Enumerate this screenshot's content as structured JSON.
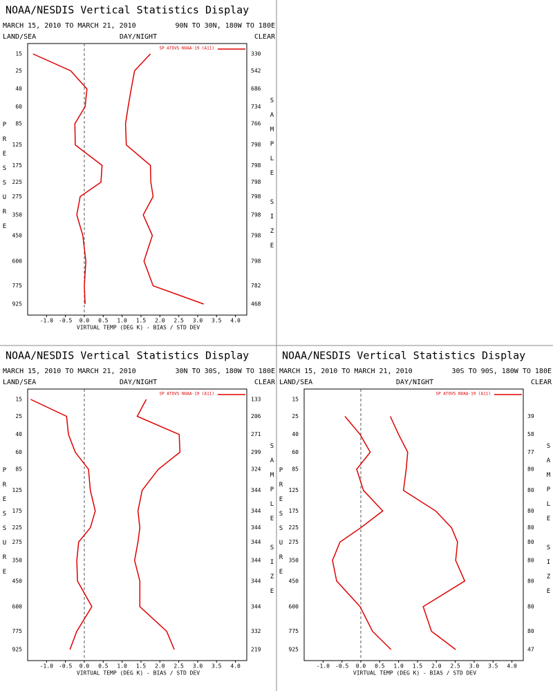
{
  "chart_data": [
    {
      "type": "line",
      "title": "NOAA/NESDIS Vertical Statistics Display",
      "date_range": "MARCH 15, 2010 TO MARCH 21, 2010",
      "region": "90N TO 30N, 180W TO 180E",
      "land_sea": "LAND/SEA",
      "day_night": "DAY/NIGHT",
      "sky": "CLEAR",
      "ylabel": "PRESSURE",
      "y2label": "SAMPLE SIZE",
      "xlabel": "VIRTUAL TEMP (DEG K) - BIAS / STD DEV",
      "categories": [
        15,
        25,
        40,
        60,
        85,
        125,
        175,
        225,
        275,
        350,
        450,
        600,
        775,
        925
      ],
      "sample_sizes": [
        330,
        542,
        686,
        734,
        766,
        798,
        798,
        798,
        798,
        798,
        798,
        798,
        782,
        468
      ],
      "series": [
        {
          "name": "SP ATOVS NOAA-19 (A11)",
          "color": "#dd0000",
          "values": [
            -1.36,
            -0.36,
            0.07,
            0.02,
            -0.25,
            -0.24,
            0.47,
            0.44,
            -0.11,
            -0.2,
            -0.04,
            0.04,
            0.0,
            0.02
          ]
        },
        {
          "color": "#dd0000",
          "values": [
            1.75,
            1.33,
            1.24,
            1.16,
            1.09,
            1.11,
            1.75,
            1.76,
            1.82,
            1.56,
            1.8,
            1.58,
            1.82,
            3.16
          ]
        }
      ],
      "xlim": [
        -1.5,
        4.3
      ],
      "xticks": [
        {
          "value": -1.0,
          "label": "-1.0"
        },
        -0.5,
        {
          "value": 0,
          "label": "0.0"
        },
        0.5,
        {
          "value": 1.0,
          "label": "1.0"
        },
        1.5,
        {
          "value": 2.0,
          "label": "2.0"
        },
        2.5,
        {
          "value": 3.0,
          "label": "3.0"
        },
        3.5,
        {
          "value": 4.0,
          "label": "4.0"
        }
      ]
    },
    {
      "type": "line",
      "title": "NOAA/NESDIS Vertical Statistics Display",
      "date_range": "MARCH 15, 2010 TO MARCH 21, 2010",
      "region": "30N TO 30S, 180W TO 180E",
      "land_sea": "LAND/SEA",
      "day_night": "DAY/NIGHT",
      "sky": "CLEAR",
      "ylabel": "PRESSURE",
      "y2label": "SAMPLE SIZE",
      "xlabel": "VIRTUAL TEMP (DEG K) - BIAS / STD DEV",
      "categories": [
        15,
        25,
        40,
        60,
        85,
        125,
        175,
        225,
        275,
        350,
        450,
        600,
        775,
        925
      ],
      "sample_sizes": [
        133,
        206,
        271,
        299,
        324,
        344,
        344,
        344,
        344,
        344,
        344,
        344,
        332,
        219
      ],
      "series": [
        {
          "name": "SP ATOVS NOAA-19 (A11)",
          "color": "#dd0000",
          "values": [
            -1.42,
            -0.47,
            -0.42,
            -0.24,
            0.11,
            0.16,
            0.29,
            0.16,
            -0.15,
            -0.2,
            -0.18,
            0.2,
            -0.2,
            -0.38
          ]
        },
        {
          "color": "#dd0000",
          "values": [
            1.64,
            1.4,
            2.51,
            2.53,
            1.96,
            1.53,
            1.42,
            1.47,
            1.42,
            1.33,
            1.47,
            1.47,
            2.18,
            2.38
          ]
        }
      ],
      "xlim": [
        -1.5,
        4.3
      ],
      "xticks": [
        {
          "value": -1.0,
          "label": "-1.0"
        },
        -0.5,
        {
          "value": 0,
          "label": "0.0"
        },
        0.5,
        {
          "value": 1.0,
          "label": "1.0"
        },
        1.5,
        {
          "value": 2.0,
          "label": "2.0"
        },
        2.5,
        {
          "value": 3.0,
          "label": "3.0"
        },
        3.5,
        {
          "value": 4.0,
          "label": "4.0"
        }
      ]
    },
    {
      "type": "line",
      "title": "NOAA/NESDIS Vertical Statistics Display",
      "date_range": "MARCH 15, 2010 TO MARCH 21, 2010",
      "region": "30S TO 90S, 180W TO 180E",
      "land_sea": "LAND/SEA",
      "day_night": "DAY/NIGHT",
      "sky": "CLEAR",
      "ylabel": "PRESSURE",
      "y2label": "SAMPLE SIZE",
      "xlabel": "VIRTUAL TEMP (DEG K) - BIAS / STD DEV",
      "categories": [
        15,
        25,
        40,
        60,
        85,
        125,
        175,
        225,
        275,
        350,
        450,
        600,
        775,
        925
      ],
      "sample_sizes": [
        null,
        39,
        58,
        77,
        80,
        80,
        80,
        80,
        80,
        80,
        80,
        80,
        80,
        47
      ],
      "series": [
        {
          "name": "SP ATOVS NOAA-19 (A11)",
          "color": "#dd0000",
          "values": [
            null,
            -0.42,
            -0.02,
            0.25,
            -0.11,
            0.07,
            0.58,
            0.0,
            -0.55,
            -0.75,
            -0.64,
            -0.02,
            0.31,
            0.8
          ]
        },
        {
          "color": "#dd0000",
          "values": [
            null,
            0.78,
            1.0,
            1.24,
            1.2,
            1.13,
            1.98,
            2.4,
            2.56,
            2.51,
            2.75,
            1.65,
            1.87,
            2.51
          ]
        }
      ],
      "xlim": [
        -1.5,
        4.3
      ],
      "xticks": [
        {
          "value": -1.0,
          "label": "-1.0"
        },
        -0.5,
        {
          "value": 0,
          "label": "0.0"
        },
        0.5,
        {
          "value": 1.0,
          "label": "1.0"
        },
        1.5,
        {
          "value": 2.0,
          "label": "2.0"
        },
        2.5,
        {
          "value": 3.0,
          "label": "3.0"
        },
        3.5,
        {
          "value": 4.0,
          "label": "4.0"
        }
      ]
    }
  ]
}
